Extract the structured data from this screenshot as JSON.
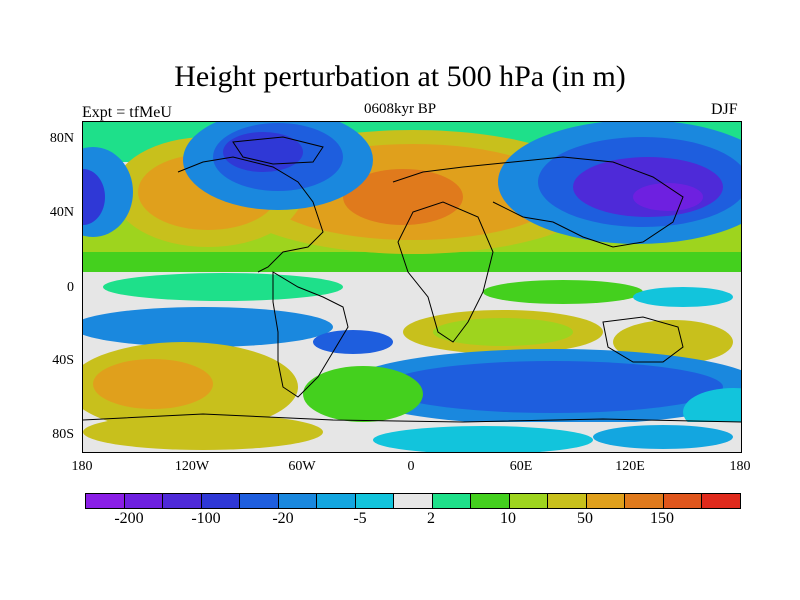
{
  "title": "Height perturbation at 500 hPa (in m)",
  "left_label": "Expt = tfMeU",
  "center_label": "0608kyr BP",
  "right_label": "DJF",
  "lat_labels": [
    "80N",
    "40N",
    "0",
    "40S",
    "80S"
  ],
  "lon_labels": [
    "180",
    "120W",
    "60W",
    "0",
    "60E",
    "120E",
    "180"
  ],
  "colorbar": {
    "colors": [
      "#8a1ee6",
      "#6e20e0",
      "#4e2ad8",
      "#2f38d6",
      "#1e5ede",
      "#1a88de",
      "#13a6e0",
      "#12c4dc",
      "#e6e6e6",
      "#1ee08a",
      "#44d01e",
      "#9ed41e",
      "#c8c01c",
      "#e0a01c",
      "#e07a1c",
      "#e0561c",
      "#e02a1c"
    ],
    "labels": [
      "-200",
      "-100",
      "-20",
      "-5",
      "2",
      "10",
      "50",
      "150"
    ]
  },
  "colors": {
    "background": "#e8e8e8",
    "coast": "#000000"
  }
}
